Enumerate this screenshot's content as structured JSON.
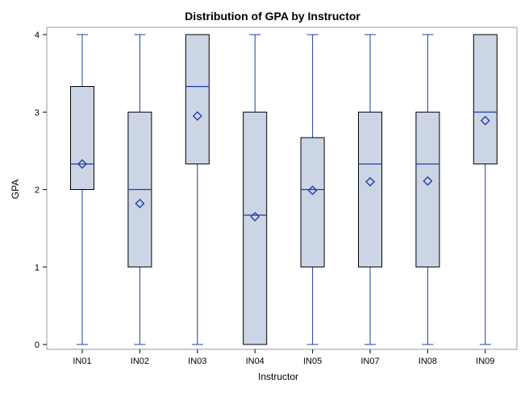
{
  "chart_data": {
    "type": "box",
    "title": "Distribution of GPA by Instructor",
    "xlabel": "Instructor",
    "ylabel": "GPA",
    "ylim": [
      0,
      4
    ],
    "yticks": [
      "0",
      "1",
      "2",
      "3",
      "4"
    ],
    "grid": false,
    "legend": "none",
    "colors": {
      "box_fill": "#cbd5e6",
      "box_stroke": "#000000",
      "median": "#1f3fa0",
      "whisker": "#1f3fa0",
      "mean_marker": "#1f3fa0",
      "frame": "#9a9a9a"
    },
    "boxes": [
      {
        "category": "IN01",
        "min": 0,
        "q1": 2.0,
        "median": 2.33,
        "q3": 3.33,
        "max": 4,
        "mean": 2.33
      },
      {
        "category": "IN02",
        "min": 0,
        "q1": 1.0,
        "median": 2.0,
        "q3": 3.0,
        "max": 4,
        "mean": 1.82
      },
      {
        "category": "IN03",
        "min": 0,
        "q1": 2.33,
        "median": 3.33,
        "q3": 4.0,
        "max": 4,
        "mean": 2.95
      },
      {
        "category": "IN04",
        "min": 0,
        "q1": 0.0,
        "median": 1.67,
        "q3": 3.0,
        "max": 4,
        "mean": 1.65
      },
      {
        "category": "IN05",
        "min": 0,
        "q1": 1.0,
        "median": 2.0,
        "q3": 2.67,
        "max": 4,
        "mean": 1.99
      },
      {
        "category": "IN07",
        "min": 0,
        "q1": 1.0,
        "median": 2.33,
        "q3": 3.0,
        "max": 4,
        "mean": 2.1
      },
      {
        "category": "IN08",
        "min": 0,
        "q1": 1.0,
        "median": 2.33,
        "q3": 3.0,
        "max": 4,
        "mean": 2.11
      },
      {
        "category": "IN09",
        "min": 0,
        "q1": 2.33,
        "median": 3.0,
        "q3": 4.0,
        "max": 4,
        "mean": 2.89
      }
    ]
  }
}
